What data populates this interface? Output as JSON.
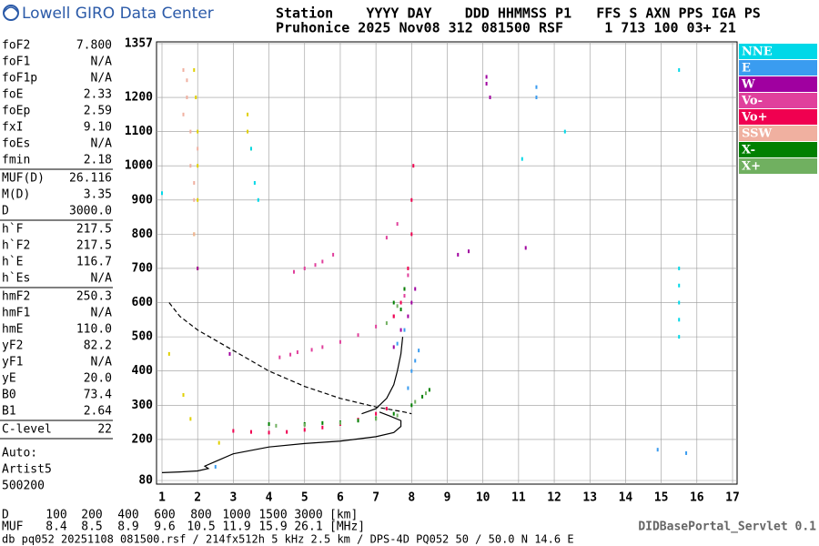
{
  "header": {
    "logo": "Lowell GIRO Data Center",
    "station_line1": "Station    YYYY DAY    DDD HHMMSS P1   FFS S AXN PPS IGA PS",
    "station_line2": "Pruhonice 2025 Nov08 312 081500 RSF     1 713 100 03+ 21"
  },
  "params": [
    [
      [
        "foF2",
        "7.800"
      ],
      [
        "foF1",
        "N/A"
      ],
      [
        "foF1p",
        "N/A"
      ],
      [
        "foE",
        "2.33"
      ],
      [
        "foEp",
        "2.59"
      ],
      [
        "fxI",
        "9.10"
      ],
      [
        "foEs",
        "N/A"
      ],
      [
        "fmin",
        "2.18"
      ]
    ],
    [
      [
        "MUF(D)",
        "26.116"
      ],
      [
        "M(D)",
        "3.35"
      ],
      [
        "D",
        "3000.0"
      ]
    ],
    [
      [
        "h`F",
        "217.5"
      ],
      [
        "h`F2",
        "217.5"
      ],
      [
        "h`E",
        "116.7"
      ],
      [
        "h`Es",
        "N/A"
      ]
    ],
    [
      [
        "hmF2",
        "250.3"
      ],
      [
        "hmF1",
        "N/A"
      ],
      [
        "hmE",
        "110.0"
      ],
      [
        "yF2",
        "82.2"
      ],
      [
        "yF1",
        "N/A"
      ],
      [
        "yE",
        "20.0"
      ],
      [
        "B0",
        "73.4"
      ],
      [
        "B1",
        "2.64"
      ]
    ],
    [
      [
        "C-level",
        "22"
      ]
    ]
  ],
  "auto": [
    "Auto:",
    "Artist5",
    "500200"
  ],
  "chart_data": {
    "type": "scatter",
    "xlim": [
      1,
      17
    ],
    "ylim": [
      80,
      1357
    ],
    "xticks": [
      1,
      2,
      3,
      4,
      5,
      6,
      7,
      8,
      9,
      10,
      11,
      12,
      13,
      14,
      15,
      16,
      17
    ],
    "yticks": [
      80,
      200,
      300,
      400,
      500,
      600,
      700,
      800,
      900,
      1000,
      1100,
      1200,
      1357
    ],
    "grid": true,
    "series": [
      {
        "name": "NNE",
        "color": "#00d8e8",
        "x": [
          15.5,
          15.5,
          15.5,
          15.5,
          15.5,
          3.5,
          3.6,
          3.7,
          1.0,
          11.1,
          12.3,
          15.5
        ],
        "y": [
          700,
          650,
          600,
          550,
          500,
          1050,
          950,
          900,
          920,
          1020,
          1100,
          1280
        ]
      },
      {
        "name": "E",
        "color": "#3a9cf0",
        "x": [
          7.9,
          8.0,
          8.1,
          8.2,
          7.8,
          7.6,
          11.5,
          11.5,
          14.9,
          15.7,
          2.5
        ],
        "y": [
          350,
          400,
          430,
          460,
          520,
          480,
          1230,
          1200,
          170,
          160,
          120
        ]
      },
      {
        "name": "W",
        "color": "#a000a0",
        "x": [
          7.5,
          7.7,
          7.9,
          8.0,
          8.1,
          9.3,
          9.6,
          10.1,
          10.1,
          10.2,
          2.0,
          2.9,
          11.2
        ],
        "y": [
          470,
          520,
          560,
          600,
          640,
          740,
          750,
          1260,
          1240,
          1200,
          700,
          450,
          760
        ]
      },
      {
        "name": "Vo-",
        "color": "#e0409c",
        "x": [
          4.3,
          4.6,
          4.8,
          5.2,
          5.5,
          6.0,
          6.5,
          7.0,
          7.5,
          7.8,
          7.9,
          4.7,
          5.0,
          5.3,
          5.5,
          5.8,
          7.3,
          7.6
        ],
        "y": [
          440,
          448,
          455,
          462,
          470,
          485,
          505,
          530,
          560,
          620,
          680,
          690,
          700,
          710,
          720,
          740,
          790,
          830
        ]
      },
      {
        "name": "Vo+",
        "color": "#f00050",
        "x": [
          3.0,
          3.5,
          4.0,
          4.5,
          5.0,
          5.5,
          6.0,
          6.5,
          7.0,
          7.3,
          7.5,
          7.7,
          7.8,
          7.9,
          8.0,
          8.0,
          8.05
        ],
        "y": [
          225,
          222,
          220,
          222,
          228,
          235,
          245,
          258,
          275,
          290,
          560,
          600,
          640,
          700,
          800,
          900,
          1000
        ]
      },
      {
        "name": "SSW",
        "color": "#f0b0a0",
        "x": [
          1.6,
          1.7,
          1.8,
          1.8,
          1.9,
          1.9,
          1.7,
          1.6,
          2.0,
          1.9
        ],
        "y": [
          1280,
          1200,
          1100,
          1000,
          900,
          800,
          1250,
          1150,
          1050,
          950
        ]
      },
      {
        "name": "X-",
        "color": "#008000",
        "x": [
          4.0,
          5.0,
          5.5,
          6.0,
          6.5,
          7.0,
          7.5,
          8.0,
          8.3,
          8.5,
          7.5,
          7.8,
          7.7
        ],
        "y": [
          245,
          245,
          248,
          250,
          255,
          262,
          275,
          300,
          325,
          345,
          600,
          640,
          580
        ]
      },
      {
        "name": "X+",
        "color": "#70b060",
        "x": [
          4.2,
          5.0,
          6.0,
          7.0,
          7.6,
          8.1,
          8.4,
          7.3,
          7.6
        ],
        "y": [
          240,
          242,
          248,
          260,
          270,
          310,
          335,
          540,
          590
        ]
      }
    ],
    "extra_series": [
      {
        "color": "#e0d000",
        "x": [
          1.9,
          1.95,
          2.0,
          2.0,
          2.0,
          1.9,
          2.0,
          3.4,
          3.4,
          3.5,
          1.2,
          1.6,
          1.8,
          2.6
        ],
        "y": [
          1280,
          1200,
          1100,
          1000,
          900,
          800,
          700,
          1150,
          1100,
          1050,
          450,
          330,
          260,
          190
        ]
      }
    ],
    "lines": [
      {
        "style": "solid",
        "x": [
          1.0,
          1.5,
          2.0,
          2.3,
          2.2,
          2.6,
          3.0,
          4.0,
          5.0,
          6.0,
          7.0,
          7.5,
          7.7,
          7.7,
          7.4,
          7.1
        ],
        "y": [
          103,
          105,
          108,
          115,
          122,
          140,
          158,
          178,
          188,
          195,
          208,
          220,
          238,
          255,
          268,
          280
        ]
      },
      {
        "style": "solid",
        "x": [
          6.6,
          7.0,
          7.3,
          7.5,
          7.6,
          7.7,
          7.75
        ],
        "y": [
          275,
          290,
          320,
          360,
          400,
          450,
          500
        ]
      },
      {
        "style": "dashed",
        "x": [
          1.2,
          1.5,
          2.0,
          3.0,
          4.0,
          5.0,
          6.0,
          7.0,
          7.8,
          8.0
        ],
        "y": [
          600,
          560,
          520,
          460,
          400,
          355,
          320,
          295,
          280,
          275
        ]
      }
    ]
  },
  "muf_table": {
    "d_label": "D",
    "d_values": [
      100,
      200,
      400,
      600,
      800,
      1000,
      1500,
      3000
    ],
    "d_unit": "[km]",
    "muf_label": "MUF",
    "muf_values": [
      8.4,
      8.5,
      8.9,
      9.6,
      10.5,
      11.9,
      15.9,
      26.1
    ],
    "muf_unit": "[MHz]"
  },
  "footer": {
    "left": "db pq052 20251108 081500.rsf / 214fx512h 5 kHz 2.5 km / DPS-4D PQ052 50 / 50.0 N 14.6 E",
    "right": "DIDBasePortal_Servlet 0.1"
  }
}
